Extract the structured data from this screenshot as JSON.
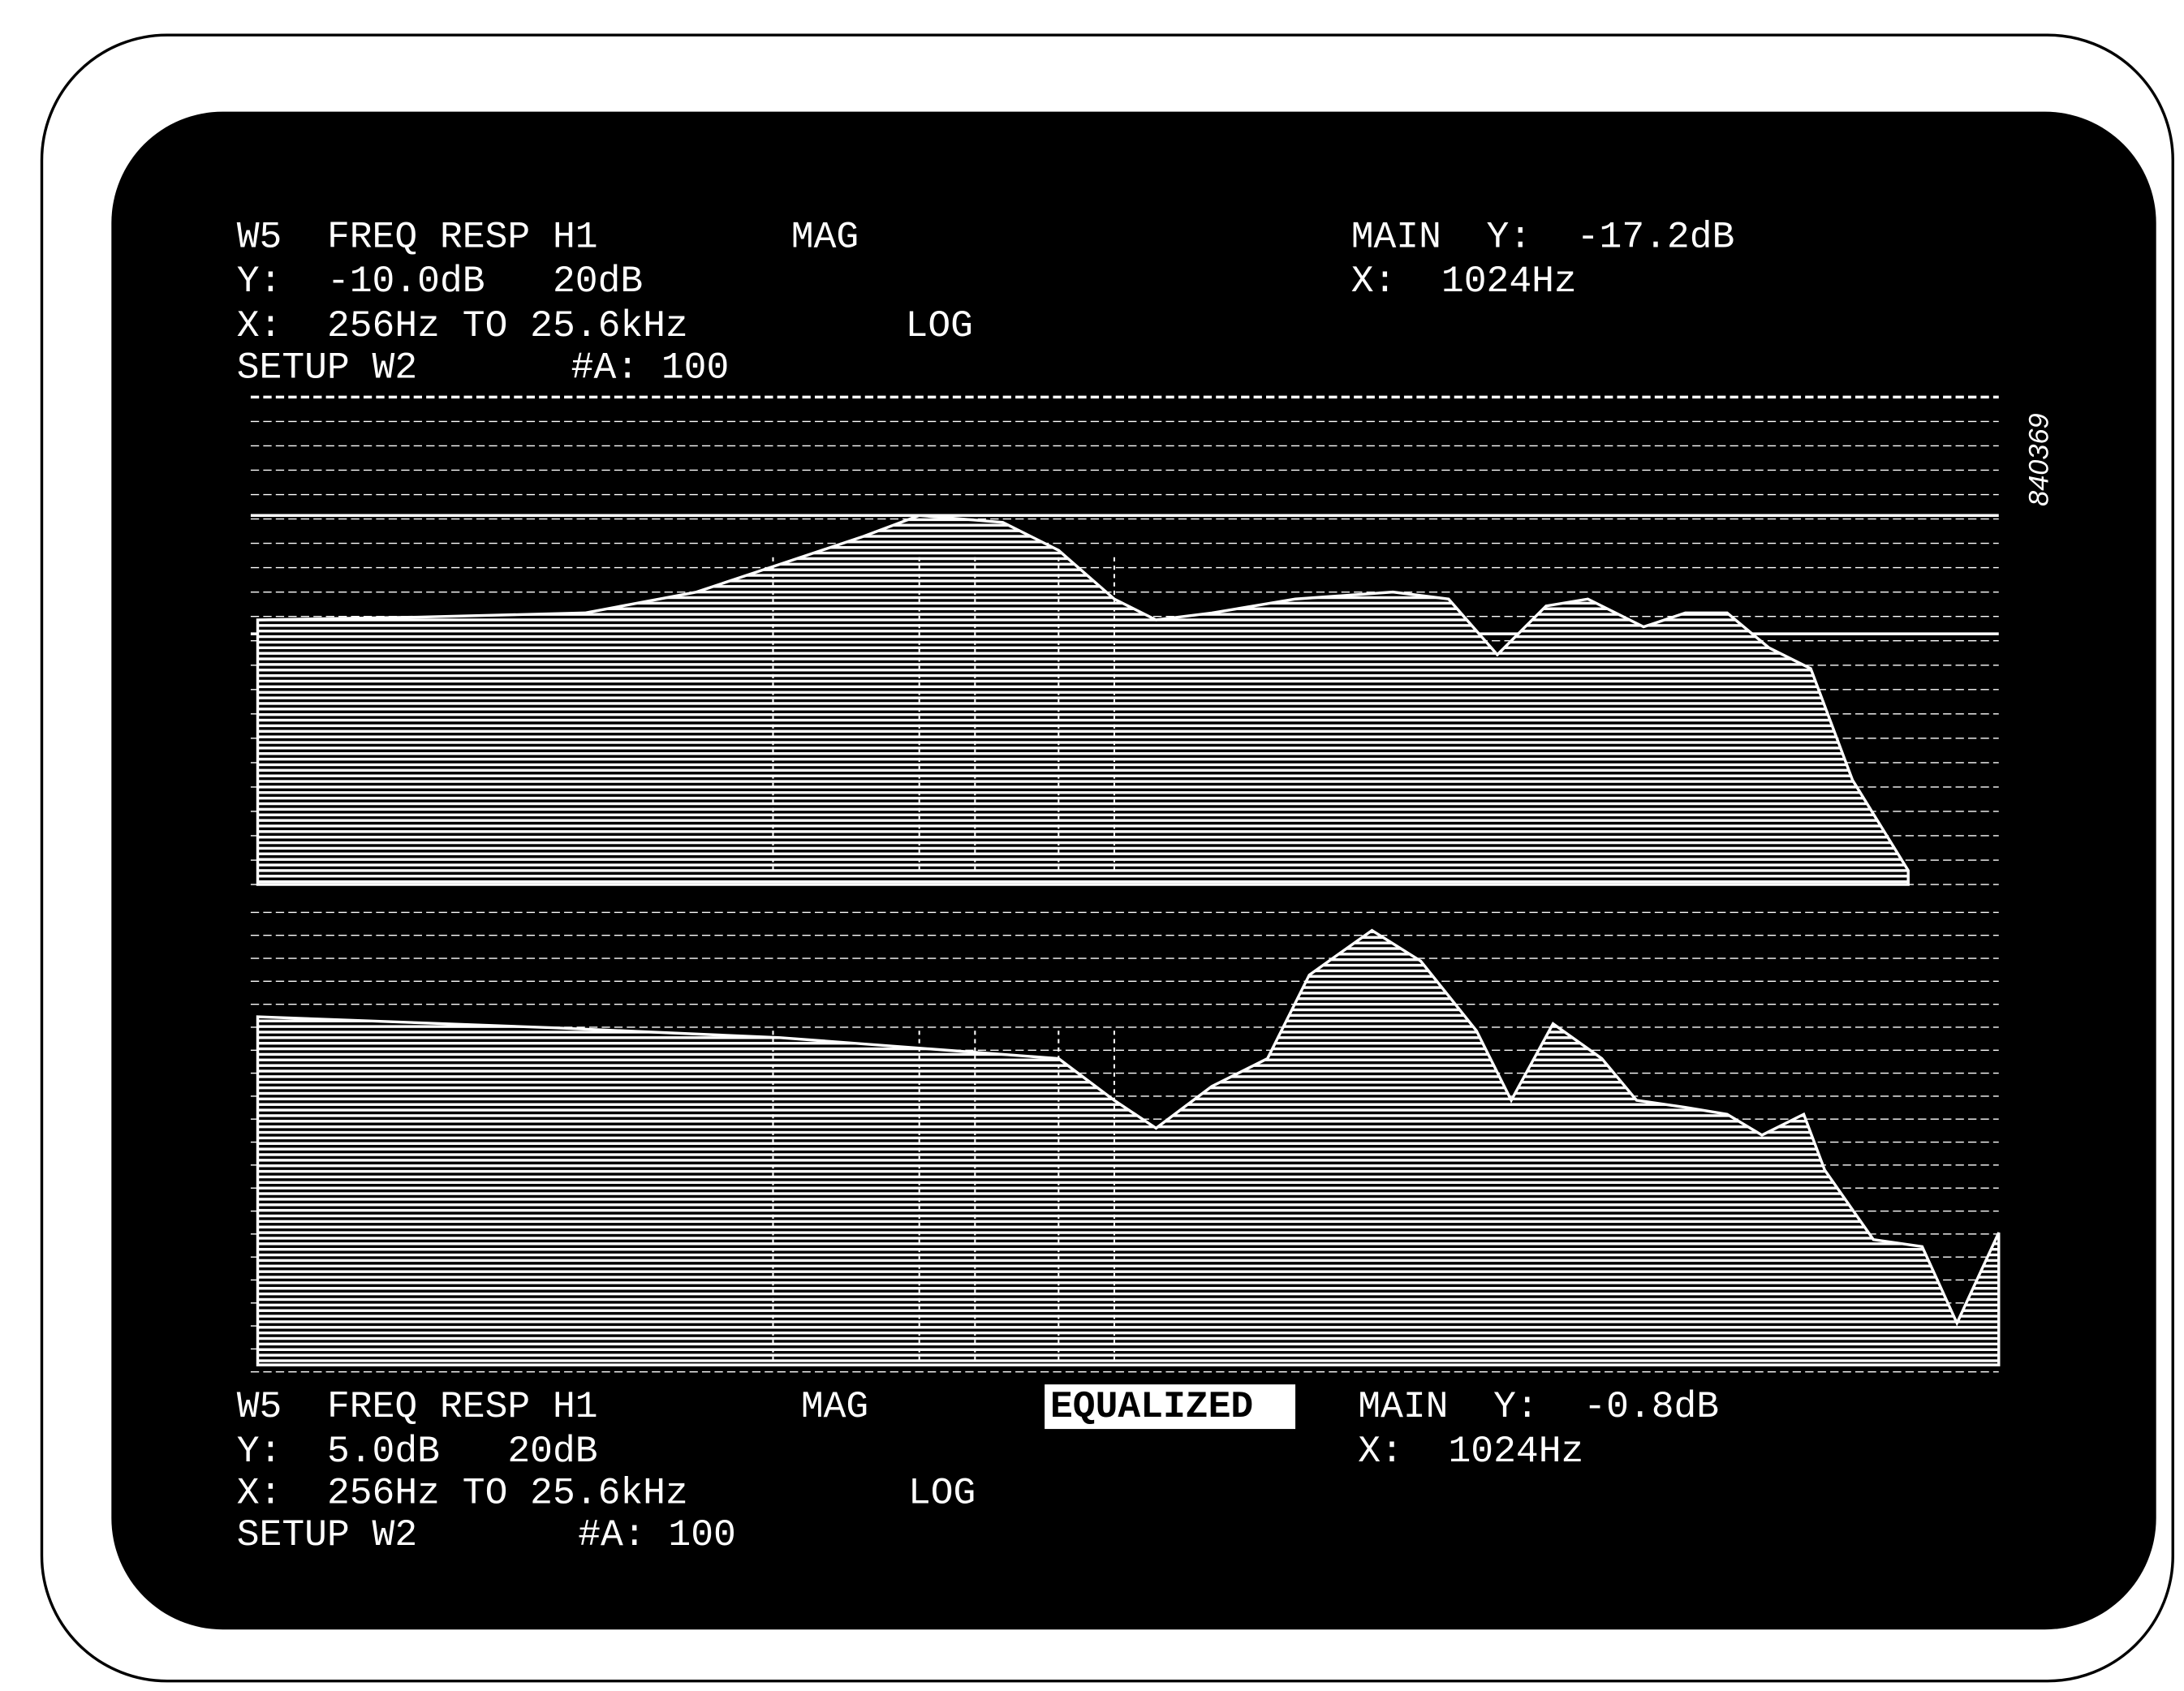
{
  "top_panel": {
    "title": "W5  FREQ RESP H1",
    "mode": "MAG",
    "y_setting": "Y:  -10.0dB   20dB",
    "x_setting": "X:  256Hz TO 25.6kHz",
    "scale": "LOG",
    "setup": "SETUP W2",
    "averages": "#A: 100",
    "marker_y": "MAIN  Y:  -17.2dB",
    "marker_x": "X:  1024Hz"
  },
  "bottom_panel": {
    "title": "W5  FREQ RESP H1",
    "mode": "MAG",
    "status": "EQUALIZED",
    "y_setting": "Y:  5.0dB   20dB",
    "x_setting": "X:  256Hz TO 25.6kHz",
    "scale": "LOG",
    "setup": "SETUP W2",
    "averages": "#A: 100",
    "marker_y": "MAIN  Y:  -0.8dB",
    "marker_x": "X:  1024Hz"
  },
  "figure_id": "840369"
}
